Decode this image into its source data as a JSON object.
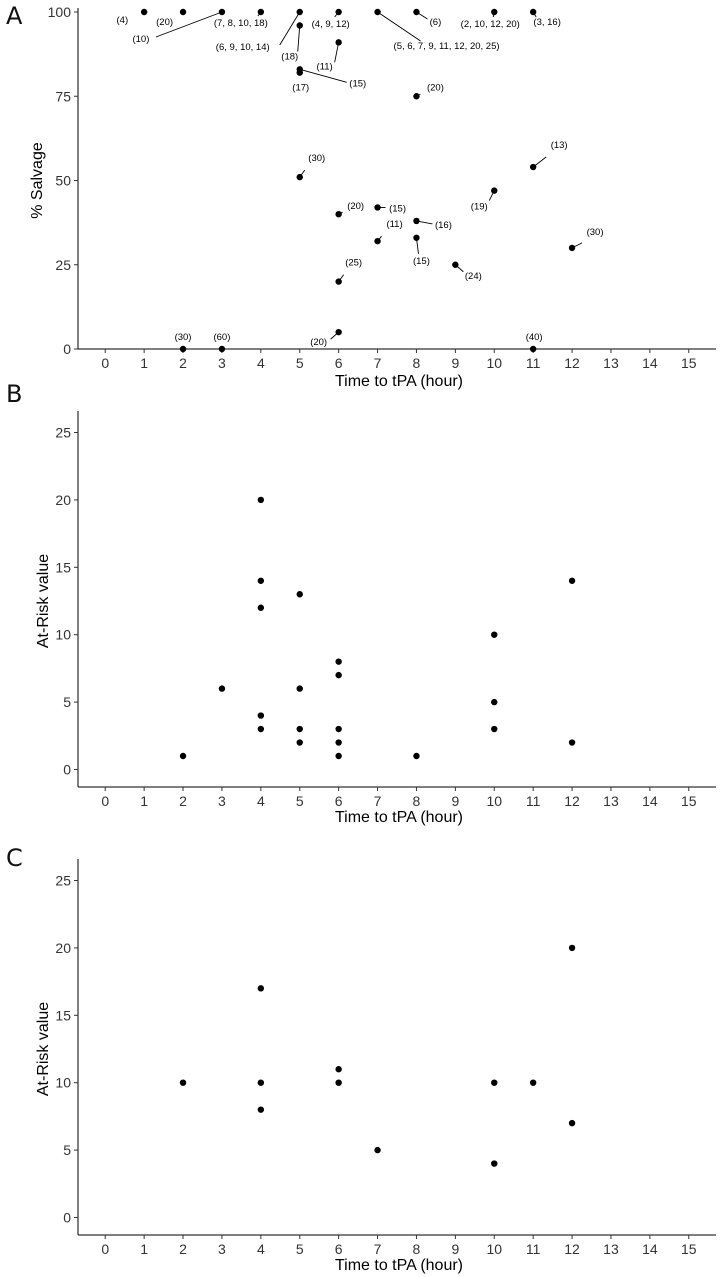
{
  "chart_data": [
    {
      "panel": "A",
      "type": "scatter",
      "xlabel": "Time to tPA (hour)",
      "ylabel": "% Salvage",
      "xlim": [
        -0.7,
        15.7
      ],
      "ylim": [
        0,
        100
      ],
      "xticks": [
        0,
        1,
        2,
        3,
        4,
        5,
        6,
        7,
        8,
        9,
        10,
        11,
        12,
        13,
        14,
        15
      ],
      "yticks": [
        0,
        25,
        50,
        75,
        100
      ],
      "points": [
        {
          "x": 1,
          "y": 100,
          "label": "(4)"
        },
        {
          "x": 2,
          "y": 100,
          "label": "(20)"
        },
        {
          "x": 3,
          "y": 100,
          "label": "(10)"
        },
        {
          "x": 4,
          "y": 100,
          "label": "(7, 8, 10, 18)"
        },
        {
          "x": 5,
          "y": 100,
          "label": "(6, 9, 10, 14)"
        },
        {
          "x": 6,
          "y": 100,
          "label": "(4, 9, 12)"
        },
        {
          "x": 7,
          "y": 100,
          "label": "(5, 6, 7, 9, 11, 12, 20, 25)"
        },
        {
          "x": 8,
          "y": 100,
          "label": "(6)"
        },
        {
          "x": 10,
          "y": 100,
          "label": "(2, 10, 12, 20)"
        },
        {
          "x": 11,
          "y": 100,
          "label": "(3, 16)"
        },
        {
          "x": 5,
          "y": 96,
          "label": "(18)"
        },
        {
          "x": 6,
          "y": 91,
          "label": "(11)"
        },
        {
          "x": 5,
          "y": 83,
          "label": "(15)"
        },
        {
          "x": 5,
          "y": 82,
          "label": "(17)"
        },
        {
          "x": 8,
          "y": 75,
          "label": "(20)"
        },
        {
          "x": 11,
          "y": 54,
          "label": "(13)"
        },
        {
          "x": 5,
          "y": 51,
          "label": "(30)"
        },
        {
          "x": 10,
          "y": 47,
          "label": "(19)"
        },
        {
          "x": 7,
          "y": 42,
          "label": "(15)"
        },
        {
          "x": 6,
          "y": 40,
          "label": "(20)"
        },
        {
          "x": 8,
          "y": 38,
          "label": "(16)"
        },
        {
          "x": 8,
          "y": 33,
          "label": "(15)"
        },
        {
          "x": 7,
          "y": 32,
          "label": "(11)"
        },
        {
          "x": 12,
          "y": 30,
          "label": "(30)"
        },
        {
          "x": 9,
          "y": 25,
          "label": "(24)"
        },
        {
          "x": 6,
          "y": 20,
          "label": "(25)"
        },
        {
          "x": 6,
          "y": 5,
          "label": "(20)"
        },
        {
          "x": 2,
          "y": 0,
          "label": "(30)"
        },
        {
          "x": 3,
          "y": 0,
          "label": "(60)"
        },
        {
          "x": 11,
          "y": 0,
          "label": "(40)"
        }
      ]
    },
    {
      "panel": "B",
      "type": "scatter",
      "xlabel": "Time to tPA (hour)",
      "ylabel": "At-Risk value",
      "xlim": [
        -0.7,
        15.7
      ],
      "ylim": [
        -1.3,
        26.3
      ],
      "xticks": [
        0,
        1,
        2,
        3,
        4,
        5,
        6,
        7,
        8,
        9,
        10,
        11,
        12,
        13,
        14,
        15
      ],
      "yticks": [
        0,
        5,
        10,
        15,
        20,
        25
      ],
      "points": [
        {
          "x": 2,
          "y": 1
        },
        {
          "x": 3,
          "y": 6
        },
        {
          "x": 4,
          "y": 20
        },
        {
          "x": 4,
          "y": 14
        },
        {
          "x": 4,
          "y": 12
        },
        {
          "x": 4,
          "y": 4
        },
        {
          "x": 4,
          "y": 3
        },
        {
          "x": 5,
          "y": 13
        },
        {
          "x": 5,
          "y": 6
        },
        {
          "x": 5,
          "y": 3
        },
        {
          "x": 5,
          "y": 2
        },
        {
          "x": 6,
          "y": 8
        },
        {
          "x": 6,
          "y": 7
        },
        {
          "x": 6,
          "y": 3
        },
        {
          "x": 6,
          "y": 2
        },
        {
          "x": 6,
          "y": 1
        },
        {
          "x": 8,
          "y": 1
        },
        {
          "x": 10,
          "y": 10
        },
        {
          "x": 10,
          "y": 5
        },
        {
          "x": 10,
          "y": 3
        },
        {
          "x": 12,
          "y": 14
        },
        {
          "x": 12,
          "y": 2
        }
      ]
    },
    {
      "panel": "C",
      "type": "scatter",
      "xlabel": "Time to tPA (hour)",
      "ylabel": "At-Risk value",
      "xlim": [
        -0.7,
        15.7
      ],
      "ylim": [
        -1.3,
        26.3
      ],
      "xticks": [
        0,
        1,
        2,
        3,
        4,
        5,
        6,
        7,
        8,
        9,
        10,
        11,
        12,
        13,
        14,
        15
      ],
      "yticks": [
        0,
        5,
        10,
        15,
        20,
        25
      ],
      "points": [
        {
          "x": 2,
          "y": 10
        },
        {
          "x": 4,
          "y": 17
        },
        {
          "x": 4,
          "y": 10
        },
        {
          "x": 4,
          "y": 8
        },
        {
          "x": 6,
          "y": 11
        },
        {
          "x": 6,
          "y": 10
        },
        {
          "x": 7,
          "y": 5
        },
        {
          "x": 10,
          "y": 10
        },
        {
          "x": 10,
          "y": 4
        },
        {
          "x": 11,
          "y": 10
        },
        {
          "x": 12,
          "y": 20
        },
        {
          "x": 12,
          "y": 7
        }
      ]
    }
  ]
}
